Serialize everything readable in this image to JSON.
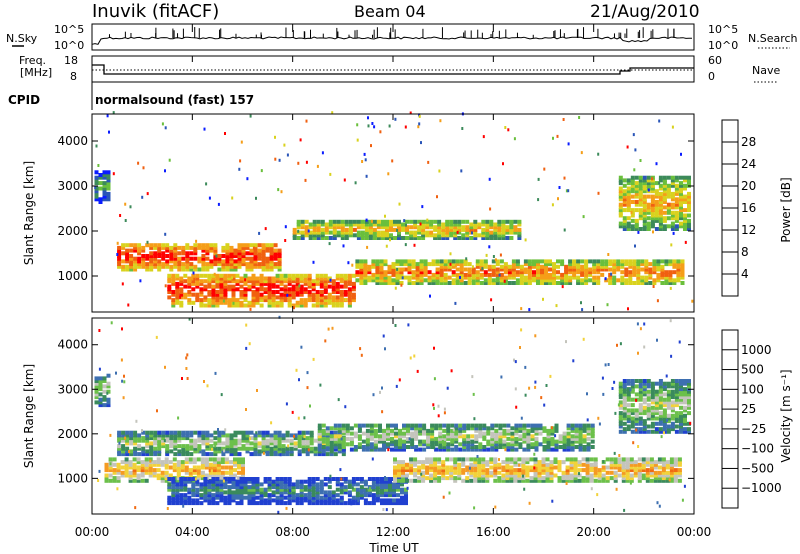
{
  "header": {
    "station": "Inuvik (fitACF)",
    "beam": "Beam 04",
    "date": "21/Aug/2010"
  },
  "nsky_panel": {
    "left_label": "N.Sky",
    "right_label": "N.Search",
    "left_ticks": [
      "10^5",
      "10^0"
    ],
    "right_ticks": [
      "10^5",
      "10^0"
    ]
  },
  "freq_panel": {
    "left_label_1": "Freq.",
    "left_label_2": "[MHz]",
    "right_label": "Nave",
    "left_ticks": [
      "18",
      "8"
    ],
    "right_ticks": [
      "60",
      "0"
    ]
  },
  "cpid": {
    "label": "CPID",
    "program": "normalsound (fast) 157"
  },
  "x_axis": {
    "label": "Time UT",
    "ticks": [
      "00:00",
      "04:00",
      "08:00",
      "12:00",
      "16:00",
      "20:00",
      "00:00"
    ]
  },
  "colors": {
    "power": [
      "#0a1cff",
      "#2a55b8",
      "#3c8a5a",
      "#6abf3c",
      "#d9d21e",
      "#f59e18",
      "#f06010",
      "#ff0000"
    ],
    "velocity": [
      "#2040d0",
      "#3d6fb0",
      "#3a8a5c",
      "#6cc04a",
      "#c4c4bc",
      "#f2d23a",
      "#f59a22",
      "#f06a12",
      "#ff0000"
    ]
  },
  "chart_data": [
    {
      "type": "heatmap",
      "title": "",
      "xlabel": "",
      "ylabel": "Slant Range [km]",
      "y_ticks": [
        "1000",
        "2000",
        "3000",
        "4000"
      ],
      "ylim": [
        200,
        4600
      ],
      "xlim_hours": [
        0,
        24
      ],
      "colorbar": {
        "label": "Power [dB]",
        "ticks": [
          "4",
          "8",
          "12",
          "16",
          "20",
          "24",
          "28"
        ]
      },
      "echo_bands": [
        {
          "t0": 0.1,
          "t1": 0.7,
          "r0": 2600,
          "r1": 3300,
          "level": 3
        },
        {
          "t0": 1.0,
          "t1": 7.5,
          "r0": 1100,
          "r1": 1700,
          "level": 7
        },
        {
          "t0": 3.0,
          "t1": 10.5,
          "r0": 300,
          "r1": 1000,
          "level": 7
        },
        {
          "t0": 8.0,
          "t1": 17.0,
          "r0": 1800,
          "r1": 2200,
          "level": 5
        },
        {
          "t0": 10.5,
          "t1": 23.5,
          "r0": 800,
          "r1": 1300,
          "level": 6
        },
        {
          "t0": 21.0,
          "t1": 23.8,
          "r0": 2000,
          "r1": 3200,
          "level": 5
        }
      ]
    },
    {
      "type": "heatmap",
      "title": "",
      "xlabel": "Time UT",
      "ylabel": "Slant Range [km]",
      "y_ticks": [
        "1000",
        "2000",
        "3000",
        "4000"
      ],
      "ylim": [
        200,
        4600
      ],
      "xlim_hours": [
        0,
        24
      ],
      "colorbar": {
        "label": "Velocity [m s⁻¹]",
        "ticks": [
          "1000",
          "500",
          "100",
          "25",
          "−25",
          "−100",
          "−500",
          "−1000"
        ]
      },
      "echo_bands": [
        {
          "t0": 0.1,
          "t1": 0.7,
          "r0": 2600,
          "r1": 3300,
          "level": 4
        },
        {
          "t0": 1.0,
          "t1": 10.0,
          "r0": 1500,
          "r1": 2000,
          "level": 4
        },
        {
          "t0": 0.5,
          "t1": 6.0,
          "r0": 900,
          "r1": 1400,
          "level": 6
        },
        {
          "t0": 3.0,
          "t1": 12.5,
          "r0": 400,
          "r1": 1000,
          "level": 2
        },
        {
          "t0": 9.0,
          "t1": 20.0,
          "r0": 1600,
          "r1": 2200,
          "level": 4
        },
        {
          "t0": 12.0,
          "t1": 23.5,
          "r0": 900,
          "r1": 1400,
          "level": 6
        },
        {
          "t0": 21.0,
          "t1": 23.8,
          "r0": 2000,
          "r1": 3200,
          "level": 4
        }
      ]
    }
  ]
}
